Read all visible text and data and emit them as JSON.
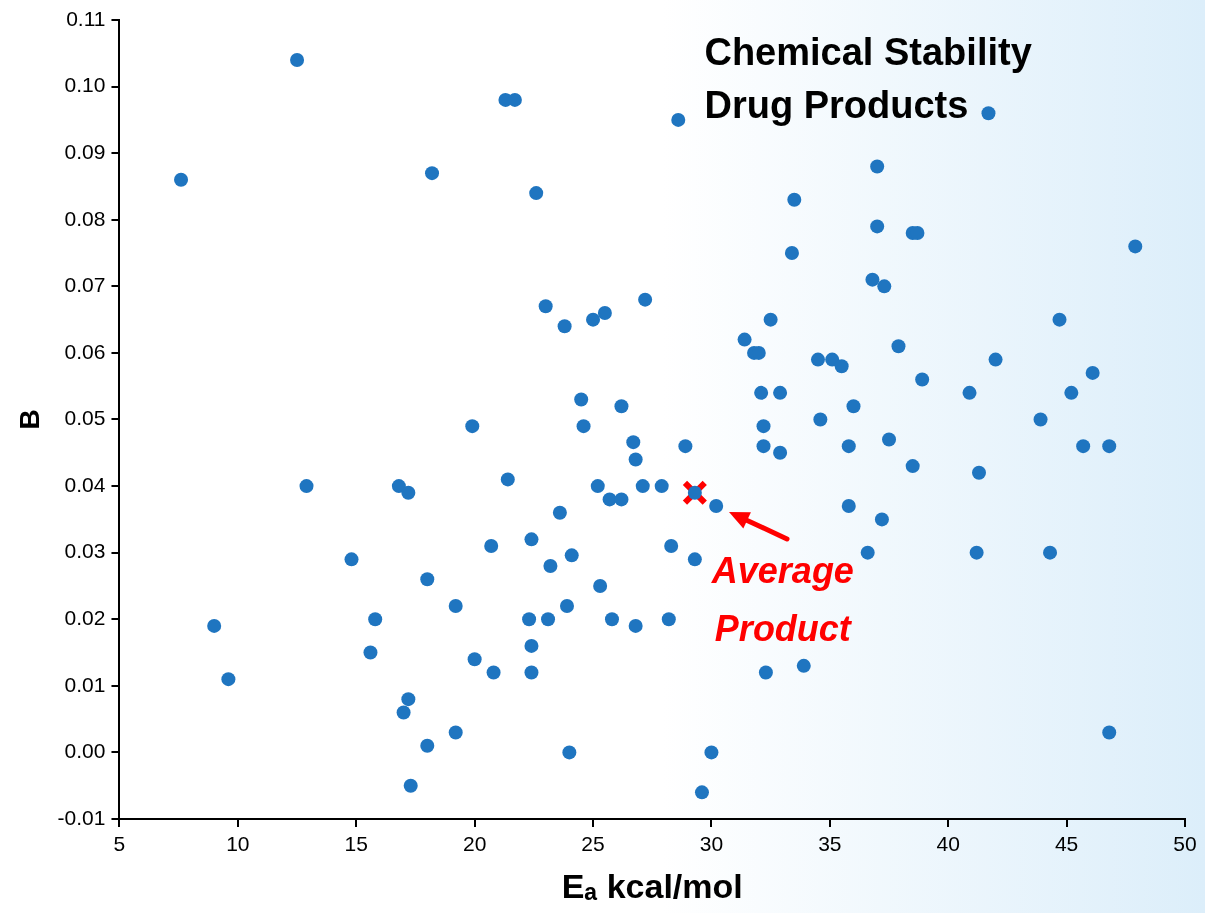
{
  "chart_data": {
    "type": "scatter",
    "title": "Chemical Stability\nDrug Products",
    "xlabel": "Eₐ kcal/mol",
    "ylabel": "B",
    "xlim": [
      5,
      50
    ],
    "xticks": [
      5,
      10,
      15,
      20,
      25,
      30,
      35,
      40,
      45,
      50
    ],
    "ylim": [
      -0.01,
      0.11
    ],
    "yticks": [
      {
        "value": -0.01,
        "label": "-0.01"
      },
      {
        "value": 0,
        "label": "0.00"
      },
      {
        "value": 0.01,
        "label": "0.01"
      },
      {
        "value": 0.02,
        "label": "0.02"
      },
      {
        "value": 0.03,
        "label": "0.03"
      },
      {
        "value": 0.04,
        "label": "0.04"
      },
      {
        "value": 0.05,
        "label": "0.05"
      },
      {
        "value": 0.06,
        "label": "0.06"
      },
      {
        "value": 0.07,
        "label": "0.07"
      },
      {
        "value": 0.08,
        "label": "0.08"
      },
      {
        "value": 0.09,
        "label": "0.09"
      },
      {
        "value": 0.1,
        "label": "0.10"
      },
      {
        "value": 0.11,
        "label": "0.11"
      }
    ],
    "grid": false,
    "legend": false,
    "series": [
      {
        "type": "scatter",
        "marker": "circle",
        "color": "#1f75c0",
        "x": [
          12.5,
          7.6,
          21.3,
          21.7,
          28.6,
          18.2,
          22.6,
          41.7,
          37.0,
          33.5,
          37.0,
          38.5,
          38.7,
          47.9,
          33.4,
          36.8,
          37.3,
          27.2,
          23.0,
          25.5,
          25.0,
          23.8,
          32.5,
          44.7,
          31.4,
          31.8,
          32.0,
          37.9,
          34.5,
          35.1,
          35.5,
          42.0,
          46.1,
          38.9,
          32.1,
          32.9,
          40.9,
          45.2,
          24.5,
          26.2,
          36.0,
          34.6,
          43.9,
          19.9,
          24.6,
          32.2,
          26.7,
          28.9,
          32.2,
          35.8,
          37.5,
          45.7,
          46.8,
          26.8,
          32.9,
          38.5,
          41.3,
          21.4,
          12.9,
          16.8,
          17.2,
          25.2,
          27.1,
          27.9,
          25.7,
          26.2,
          29.3,
          30.2,
          35.8,
          23.6,
          37.2,
          22.4,
          20.7,
          28.3,
          14.8,
          24.1,
          29.3,
          23.2,
          36.6,
          41.2,
          44.3,
          18.0,
          25.3,
          19.2,
          23.9,
          9.0,
          15.8,
          22.3,
          23.1,
          25.8,
          26.8,
          28.2,
          15.6,
          22.4,
          20.0,
          9.6,
          20.8,
          22.4,
          32.3,
          33.9,
          17.2,
          17.0,
          19.2,
          18.0,
          46.8,
          24.0,
          30.0,
          17.3,
          29.6
        ],
        "values": [
          0.104,
          0.086,
          0.098,
          0.098,
          0.095,
          0.087,
          0.084,
          0.096,
          0.088,
          0.083,
          0.079,
          0.078,
          0.078,
          0.076,
          0.075,
          0.071,
          0.07,
          0.068,
          0.067,
          0.066,
          0.065,
          0.064,
          0.065,
          0.065,
          0.062,
          0.06,
          0.06,
          0.061,
          0.059,
          0.059,
          0.058,
          0.059,
          0.057,
          0.056,
          0.054,
          0.054,
          0.054,
          0.054,
          0.053,
          0.052,
          0.052,
          0.05,
          0.05,
          0.049,
          0.049,
          0.049,
          0.0466,
          0.046,
          0.046,
          0.046,
          0.047,
          0.046,
          0.046,
          0.044,
          0.045,
          0.043,
          0.042,
          0.041,
          0.04,
          0.04,
          0.039,
          0.04,
          0.04,
          0.04,
          0.038,
          0.038,
          0.039,
          0.037,
          0.037,
          0.036,
          0.035,
          0.032,
          0.031,
          0.031,
          0.029,
          0.0296,
          0.029,
          0.028,
          0.03,
          0.03,
          0.03,
          0.026,
          0.025,
          0.022,
          0.022,
          0.019,
          0.02,
          0.02,
          0.02,
          0.02,
          0.019,
          0.02,
          0.015,
          0.016,
          0.014,
          0.011,
          0.012,
          0.012,
          0.012,
          0.013,
          0.008,
          0.006,
          0.003,
          0.001,
          0.003,
          0.0,
          0.0,
          -0.005,
          -0.006
        ]
      },
      {
        "type": "scatter",
        "marker": "cross",
        "color": "#ff0000",
        "x": [
          29.3
        ],
        "values": [
          0.039
        ]
      }
    ],
    "annotations": [
      {
        "text": "Average Product",
        "x": 29.3,
        "y": 0.039
      }
    ]
  }
}
